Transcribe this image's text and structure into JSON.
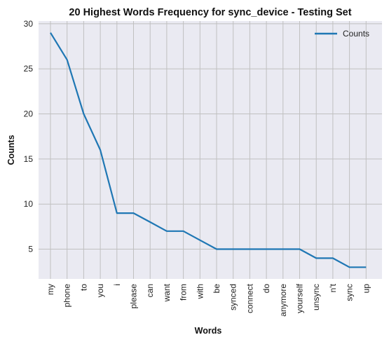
{
  "chart_data": {
    "type": "line",
    "title": "20 Highest Words Frequency for sync_device - Testing Set",
    "xlabel": "Words",
    "ylabel": "Counts",
    "categories": [
      "my",
      "phone",
      "to",
      "you",
      "i",
      "please",
      "can",
      "want",
      "from",
      "with",
      "be",
      "synced",
      "connect",
      "do",
      "anymore",
      "yourself",
      "unsync",
      "n't",
      "sync",
      "up"
    ],
    "series": [
      {
        "name": "Counts",
        "values": [
          29,
          26,
          20,
          16,
          9,
          9,
          8,
          7,
          7,
          6,
          5,
          5,
          5,
          5,
          5,
          5,
          4,
          4,
          3,
          3
        ]
      }
    ],
    "yticks": [
      "5",
      "10",
      "15",
      "20",
      "25",
      "30"
    ],
    "ylim": [
      1.7,
      30.3
    ],
    "grid": true,
    "legend_position": "top-right",
    "colors": {
      "line": "#1f77b4",
      "plot_bg": "#eaeaf2",
      "grid": "#c0c0c0"
    }
  }
}
